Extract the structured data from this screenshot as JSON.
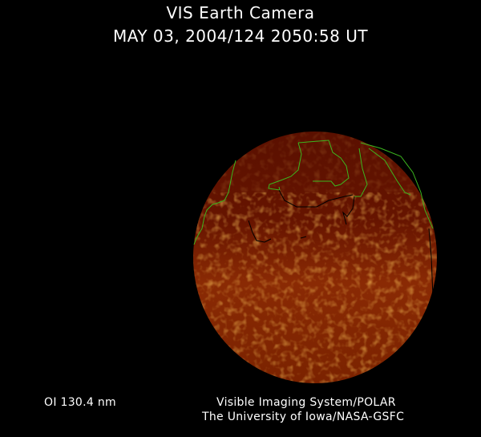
{
  "title": "VIS Earth Camera",
  "subtitle": "MAY 03, 2004/124 2050:58 UT",
  "wavelength_label": "OI  130.4 nm",
  "credit_line1": "Visible Imaging System/POLAR",
  "credit_line2": "The University of Iowa/NASA-GSFC",
  "colors": {
    "background": "#000000",
    "coastline": "#3cb61e",
    "disk_dark": "#5a0c00",
    "disk_bright": "#f0a020"
  }
}
